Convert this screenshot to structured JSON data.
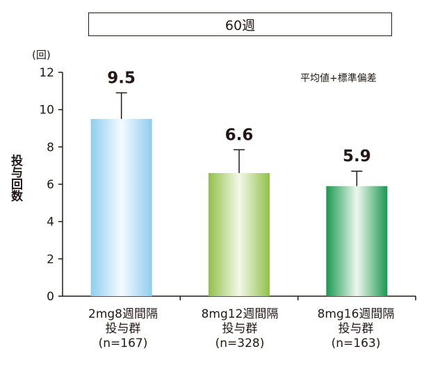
{
  "chart_data": {
    "type": "bar",
    "title": "60週",
    "unit": "(回)",
    "ylabel": "投与回数",
    "error_bar_note": "平均値+標準偏差",
    "ylim": [
      0,
      12
    ],
    "yticks": [
      0,
      2,
      4,
      6,
      8,
      10,
      12
    ],
    "grid": false,
    "categories": [
      {
        "line1": "2mg8週間隔",
        "line2": "投与群",
        "line3": "(n=167)"
      },
      {
        "line1": "8mg12週間隔",
        "line2": "投与群",
        "line3": "(n=328)"
      },
      {
        "line1": "8mg16週間隔",
        "line2": "投与群",
        "line3": "(n=163)"
      }
    ],
    "values": [
      9.5,
      6.6,
      5.9
    ],
    "value_labels": [
      "9.5",
      "6.6",
      "5.9"
    ],
    "error_upper": [
      10.9,
      7.85,
      6.7
    ],
    "colors": [
      {
        "edge": "#8fcdef",
        "center": "#f4fbfe"
      },
      {
        "edge": "#92c04a",
        "center": "#f3f8e8"
      },
      {
        "edge": "#1a9950",
        "center": "#eef7ef"
      }
    ]
  }
}
